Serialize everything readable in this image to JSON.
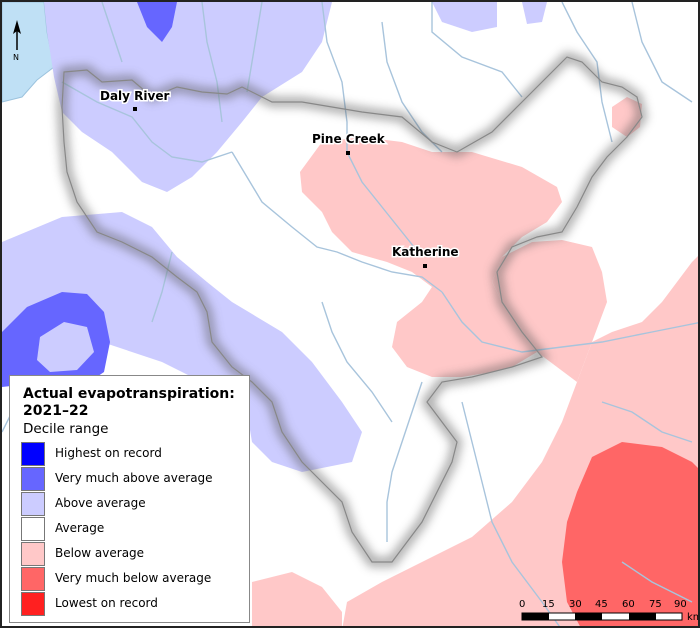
{
  "legend": {
    "title": "Actual evapotranspiration: 2021–22",
    "subtitle": "Decile range",
    "items": [
      {
        "label": "Highest on record",
        "color": "#0000ff"
      },
      {
        "label": "Very much above average",
        "color": "#6666ff"
      },
      {
        "label": "Above average",
        "color": "#ccccff"
      },
      {
        "label": "Average",
        "color": "#ffffff"
      },
      {
        "label": "Below average",
        "color": "#ffc8c8"
      },
      {
        "label": "Very much below average",
        "color": "#ff6666"
      },
      {
        "label": "Lowest on record",
        "color": "#ff2020"
      }
    ]
  },
  "towns": [
    {
      "name": "Daly River"
    },
    {
      "name": "Pine Creek"
    },
    {
      "name": "Katherine"
    }
  ],
  "north_arrow": {
    "letter": "N"
  },
  "scale_bar": {
    "ticks": [
      "0",
      "15",
      "30",
      "45",
      "60",
      "75",
      "90"
    ],
    "unit": "km"
  },
  "colors": {
    "sea": "#bfe0f5",
    "river": "#a8c4dc",
    "boundary_shadow": "#555555"
  }
}
